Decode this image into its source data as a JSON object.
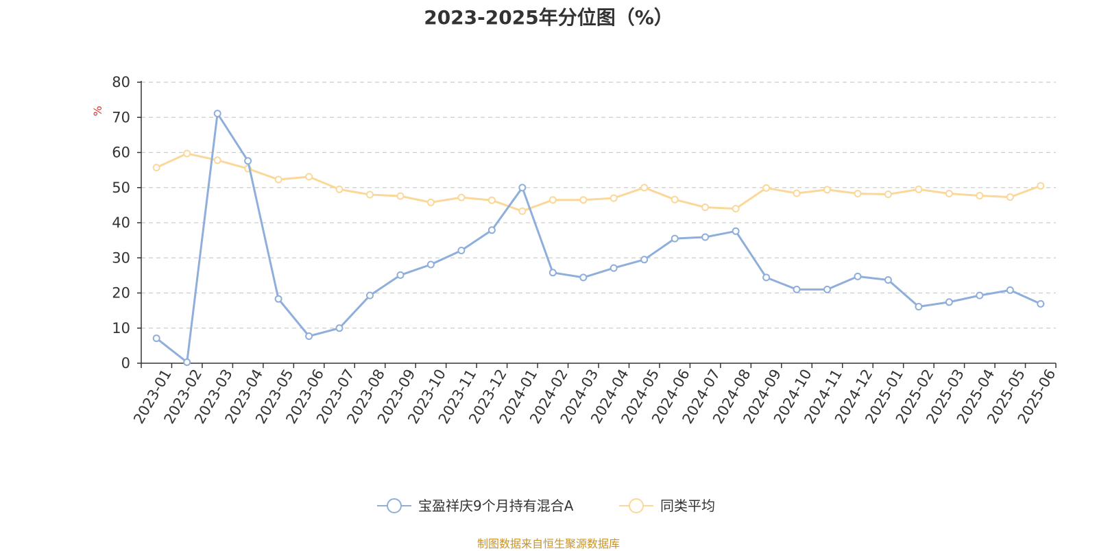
{
  "chart_data": {
    "type": "line",
    "title": "2023-2025年分位图（%）",
    "ylabel": "%",
    "xlabel": "",
    "ylim": [
      0,
      80
    ],
    "yticks": [
      0,
      10,
      20,
      30,
      40,
      50,
      60,
      70,
      80
    ],
    "grid": true,
    "legend_position": "bottom-center",
    "categories": [
      "2023-01",
      "2023-02",
      "2023-03",
      "2023-04",
      "2023-05",
      "2023-06",
      "2023-07",
      "2023-08",
      "2023-09",
      "2023-10",
      "2023-11",
      "2023-12",
      "2024-01",
      "2024-02",
      "2024-03",
      "2024-04",
      "2024-05",
      "2024-06",
      "2024-07",
      "2024-08",
      "2024-09",
      "2024-10",
      "2024-11",
      "2024-12",
      "2025-01",
      "2025-02",
      "2025-03",
      "2025-04",
      "2025-05",
      "2025-06"
    ],
    "series": [
      {
        "name": "宝盈祥庆9个月持有混合A",
        "color": "#8eaedb",
        "values": [
          7.1,
          0.3,
          71.1,
          57.6,
          18.3,
          7.7,
          10.0,
          19.3,
          25.1,
          28.1,
          32.1,
          37.9,
          50.0,
          25.8,
          24.4,
          27.1,
          29.5,
          35.5,
          35.9,
          37.6,
          24.4,
          21.0,
          21.0,
          24.7,
          23.7,
          16.1,
          17.4,
          19.3,
          20.8,
          16.9
        ]
      },
      {
        "name": "同类平均",
        "color": "#fbd89a",
        "values": [
          55.7,
          59.7,
          57.8,
          55.4,
          52.3,
          53.1,
          49.5,
          48.0,
          47.6,
          45.8,
          47.2,
          46.4,
          43.3,
          46.5,
          46.5,
          47.0,
          50.0,
          46.6,
          44.4,
          44.0,
          49.9,
          48.4,
          49.4,
          48.3,
          48.1,
          49.5,
          48.3,
          47.7,
          47.3,
          50.5
        ]
      }
    ]
  },
  "source_text": "制图数据来自恒生聚源数据库"
}
